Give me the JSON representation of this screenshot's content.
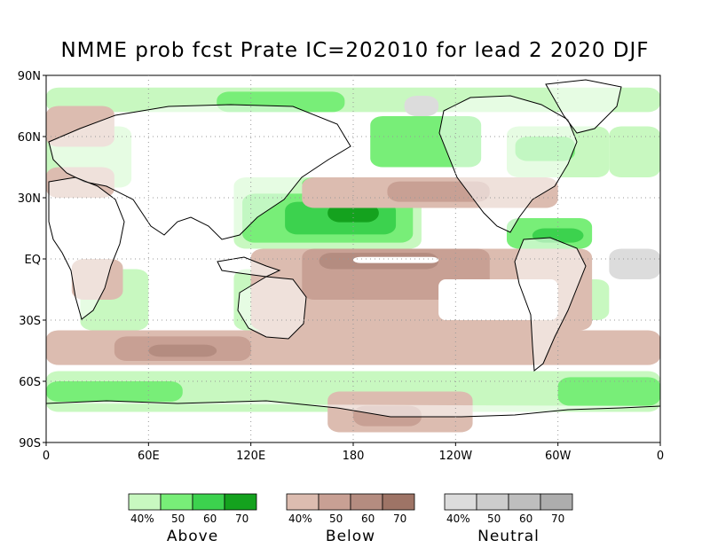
{
  "title": "NMME prob fcst Prate IC=202010 for lead 2 2020 DJF",
  "lat_axis": {
    "labels": [
      "90N",
      "60N",
      "30N",
      "EQ",
      "30S",
      "60S",
      "90S"
    ],
    "values": [
      90,
      60,
      30,
      0,
      -30,
      -60,
      -90
    ]
  },
  "lon_axis": {
    "labels": [
      "0",
      "60E",
      "120E",
      "180",
      "120W",
      "60W",
      "0"
    ],
    "values": [
      0,
      60,
      120,
      180,
      240,
      300,
      360
    ]
  },
  "colors": {
    "above": [
      "#c8f8c0",
      "#78ee78",
      "#3cd24e",
      "#14a21e"
    ],
    "below": [
      "#dcbcb0",
      "#c8a094",
      "#b48c80",
      "#9e7466"
    ],
    "neutral": [
      "#dcdcdc",
      "#cdcdcd",
      "#bebebe",
      "#adadad"
    ]
  },
  "legends": [
    {
      "name": "Above",
      "key": "above",
      "ticks": [
        "40%",
        "50",
        "60",
        "70"
      ]
    },
    {
      "name": "Below",
      "key": "below",
      "ticks": [
        "40%",
        "50",
        "60",
        "70"
      ]
    },
    {
      "name": "Neutral",
      "key": "neutral",
      "ticks": [
        "40%",
        "50",
        "60",
        "70"
      ]
    }
  ],
  "regions": [
    {
      "category": "above",
      "level": 1,
      "lon": [
        0,
        360
      ],
      "lat": [
        72,
        84
      ]
    },
    {
      "category": "above",
      "level": 2,
      "lon": [
        100,
        175
      ],
      "lat": [
        72,
        82
      ]
    },
    {
      "category": "above",
      "level": 1,
      "lon": [
        0,
        360
      ],
      "lat": [
        -75,
        -55
      ]
    },
    {
      "category": "above",
      "level": 2,
      "lon": [
        0,
        80
      ],
      "lat": [
        -70,
        -60
      ]
    },
    {
      "category": "above",
      "level": 2,
      "lon": [
        300,
        360
      ],
      "lat": [
        -72,
        -58
      ]
    },
    {
      "category": "above",
      "level": 1,
      "lon": [
        110,
        220
      ],
      "lat": [
        5,
        40
      ]
    },
    {
      "category": "above",
      "level": 2,
      "lon": [
        115,
        215
      ],
      "lat": [
        8,
        32
      ]
    },
    {
      "category": "above",
      "level": 3,
      "lon": [
        140,
        205
      ],
      "lat": [
        12,
        28
      ]
    },
    {
      "category": "above",
      "level": 4,
      "lon": [
        165,
        195
      ],
      "lat": [
        18,
        27
      ]
    },
    {
      "category": "above",
      "level": 2,
      "lon": [
        150,
        165
      ],
      "lat": [
        34,
        40
      ]
    },
    {
      "category": "above",
      "level": 1,
      "lon": [
        110,
        160
      ],
      "lat": [
        -35,
        -5
      ]
    },
    {
      "category": "above",
      "level": 2,
      "lon": [
        150,
        175
      ],
      "lat": [
        -25,
        -10
      ]
    },
    {
      "category": "above",
      "level": 2,
      "lon": [
        190,
        255
      ],
      "lat": [
        45,
        70
      ]
    },
    {
      "category": "above",
      "level": 1,
      "lon": [
        270,
        330
      ],
      "lat": [
        40,
        65
      ]
    },
    {
      "category": "above",
      "level": 2,
      "lon": [
        275,
        310
      ],
      "lat": [
        48,
        60
      ]
    },
    {
      "category": "above",
      "level": 2,
      "lon": [
        270,
        320
      ],
      "lat": [
        5,
        20
      ]
    },
    {
      "category": "above",
      "level": 3,
      "lon": [
        285,
        315
      ],
      "lat": [
        8,
        15
      ]
    },
    {
      "category": "above",
      "level": 1,
      "lon": [
        0,
        50
      ],
      "lat": [
        35,
        65
      ]
    },
    {
      "category": "above",
      "level": 1,
      "lon": [
        330,
        360
      ],
      "lat": [
        40,
        65
      ]
    },
    {
      "category": "above",
      "level": 1,
      "lon": [
        20,
        60
      ],
      "lat": [
        -35,
        -5
      ]
    },
    {
      "category": "above",
      "level": 1,
      "lon": [
        290,
        330
      ],
      "lat": [
        -30,
        -10
      ]
    },
    {
      "category": "below",
      "level": 1,
      "lon": [
        120,
        320
      ],
      "lat": [
        -35,
        5
      ]
    },
    {
      "category": "below",
      "level": 2,
      "lon": [
        150,
        260
      ],
      "lat": [
        -20,
        5
      ]
    },
    {
      "category": "below",
      "level": 3,
      "lon": [
        160,
        230
      ],
      "lat": [
        -5,
        3
      ]
    },
    {
      "category": "below",
      "level": 1,
      "lon": [
        150,
        300
      ],
      "lat": [
        25,
        40
      ]
    },
    {
      "category": "below",
      "level": 2,
      "lon": [
        200,
        260
      ],
      "lat": [
        28,
        38
      ]
    },
    {
      "category": "below",
      "level": 1,
      "lon": [
        0,
        360
      ],
      "lat": [
        -52,
        -35
      ]
    },
    {
      "category": "below",
      "level": 2,
      "lon": [
        40,
        120
      ],
      "lat": [
        -50,
        -38
      ]
    },
    {
      "category": "below",
      "level": 3,
      "lon": [
        60,
        100
      ],
      "lat": [
        -48,
        -42
      ]
    },
    {
      "category": "below",
      "level": 1,
      "lon": [
        165,
        250
      ],
      "lat": [
        -85,
        -65
      ]
    },
    {
      "category": "below",
      "level": 2,
      "lon": [
        180,
        220
      ],
      "lat": [
        -82,
        -72
      ]
    },
    {
      "category": "below",
      "level": 1,
      "lon": [
        0,
        40
      ],
      "lat": [
        30,
        45
      ]
    },
    {
      "category": "below",
      "level": 1,
      "lon": [
        15,
        45
      ],
      "lat": [
        -20,
        0
      ]
    },
    {
      "category": "below",
      "level": 1,
      "lon": [
        0,
        40
      ],
      "lat": [
        55,
        75
      ]
    },
    {
      "category": "neutral",
      "level": 1,
      "lon": [
        210,
        230
      ],
      "lat": [
        70,
        80
      ]
    },
    {
      "category": "neutral",
      "level": 1,
      "lon": [
        330,
        360
      ],
      "lat": [
        -10,
        5
      ]
    }
  ],
  "blank_bands": [
    {
      "lon": [
        180,
        230
      ],
      "lat": [
        -2,
        1
      ]
    },
    {
      "lon": [
        230,
        300
      ],
      "lat": [
        -30,
        -10
      ]
    }
  ]
}
